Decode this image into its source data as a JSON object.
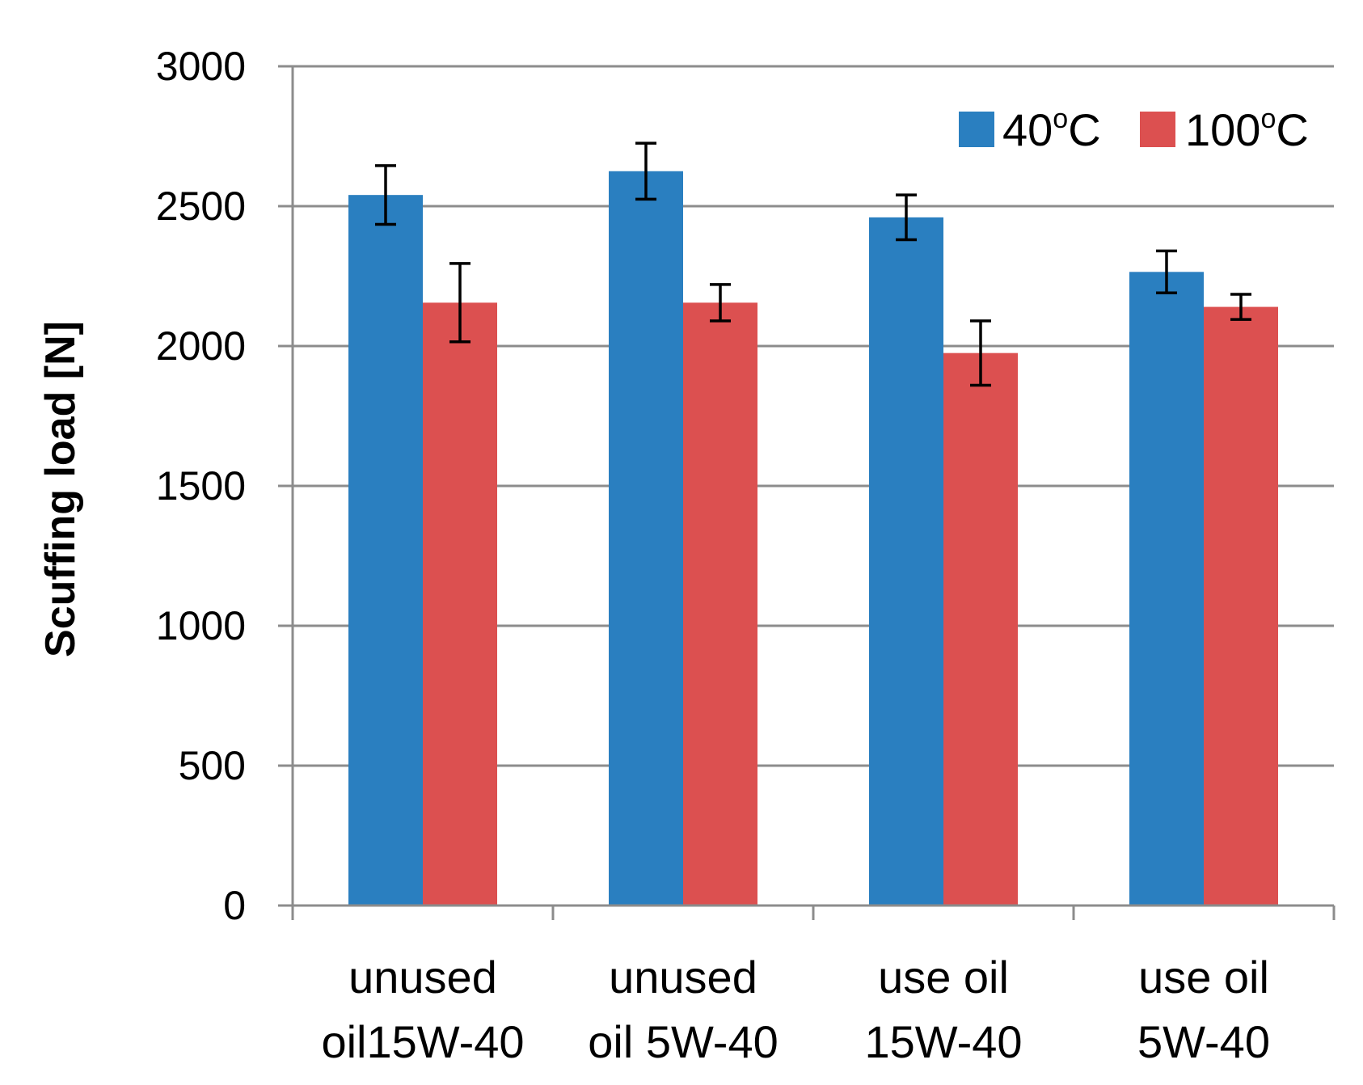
{
  "chart_data": {
    "type": "bar",
    "title": "",
    "xlabel": "",
    "ylabel": "Scuffing load  [N]",
    "ylim": [
      0,
      3000
    ],
    "yticks": [
      0,
      500,
      1000,
      1500,
      2000,
      2500,
      3000
    ],
    "grid": true,
    "legend_position": "top-right",
    "categories": [
      [
        "unused",
        "oil15W-40"
      ],
      [
        "unused",
        "oil 5W-40"
      ],
      [
        "use oil",
        "15W-40"
      ],
      [
        "use oil",
        "5W-40"
      ]
    ],
    "series": [
      {
        "name": "40",
        "name_sup": "o",
        "name_suffix": "C",
        "color": "#2A7FC0",
        "values": [
          2540,
          2625,
          2460,
          2265
        ],
        "errors": [
          105,
          100,
          80,
          75
        ]
      },
      {
        "name": "100",
        "name_sup": "o",
        "name_suffix": "C",
        "color": "#DC5050",
        "values": [
          2155,
          2155,
          1975,
          2140
        ],
        "errors": [
          140,
          65,
          115,
          45
        ]
      }
    ]
  }
}
